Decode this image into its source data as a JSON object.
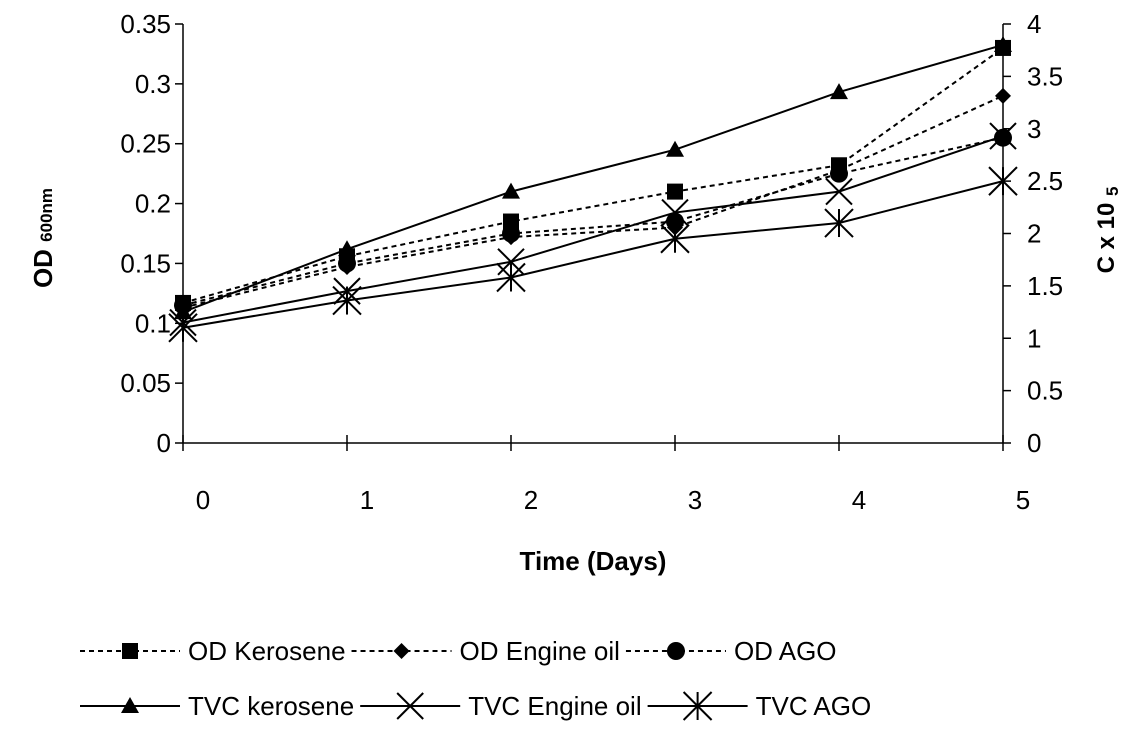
{
  "chart_data": {
    "type": "line",
    "x": [
      0,
      1,
      2,
      3,
      4,
      5
    ],
    "xlabel": "Time (Days)",
    "ylabel_main": "OD",
    "ylabel_sub": "600nm",
    "y2label_main": "C   x 10",
    "y2label_sub": "5",
    "ylim": [
      0,
      0.35
    ],
    "y_ticks": [
      "0",
      "0.05",
      "0.1",
      "0.15",
      "0.2",
      "0.25",
      "0.3",
      "0.35"
    ],
    "y2lim": [
      0,
      4
    ],
    "y2_ticks": [
      "0",
      "0.5",
      "1",
      "1.5",
      "2",
      "2.5",
      "3",
      "3.5",
      "4"
    ],
    "x_ticks": [
      "0",
      "1",
      "2",
      "3",
      "4",
      "5"
    ],
    "legend_position": "bottom",
    "series": [
      {
        "name": "OD Kerosene",
        "axis": "left",
        "style": "dashed",
        "marker": "square",
        "values": [
          0.117,
          0.156,
          0.185,
          0.21,
          0.232,
          0.33
        ]
      },
      {
        "name": "OD Engine oil",
        "axis": "left",
        "style": "dashed",
        "marker": "diamond",
        "values": [
          0.113,
          0.147,
          0.172,
          0.18,
          0.228,
          0.29
        ]
      },
      {
        "name": "OD AGO",
        "axis": "left",
        "style": "dashed",
        "marker": "circle",
        "values": [
          0.115,
          0.15,
          0.175,
          0.185,
          0.225,
          0.255
        ]
      },
      {
        "name": "TVC kerosene",
        "axis": "right",
        "style": "solid",
        "marker": "triangle",
        "values": [
          1.25,
          1.85,
          2.4,
          2.8,
          3.35,
          3.8
        ]
      },
      {
        "name": "TVC Engine oil",
        "axis": "right",
        "style": "solid",
        "marker": "x",
        "values": [
          1.15,
          1.45,
          1.73,
          2.2,
          2.4,
          2.93
        ]
      },
      {
        "name": "TVC AGO",
        "axis": "right",
        "style": "solid",
        "marker": "star",
        "values": [
          1.1,
          1.36,
          1.58,
          1.95,
          2.1,
          2.5
        ]
      }
    ]
  }
}
